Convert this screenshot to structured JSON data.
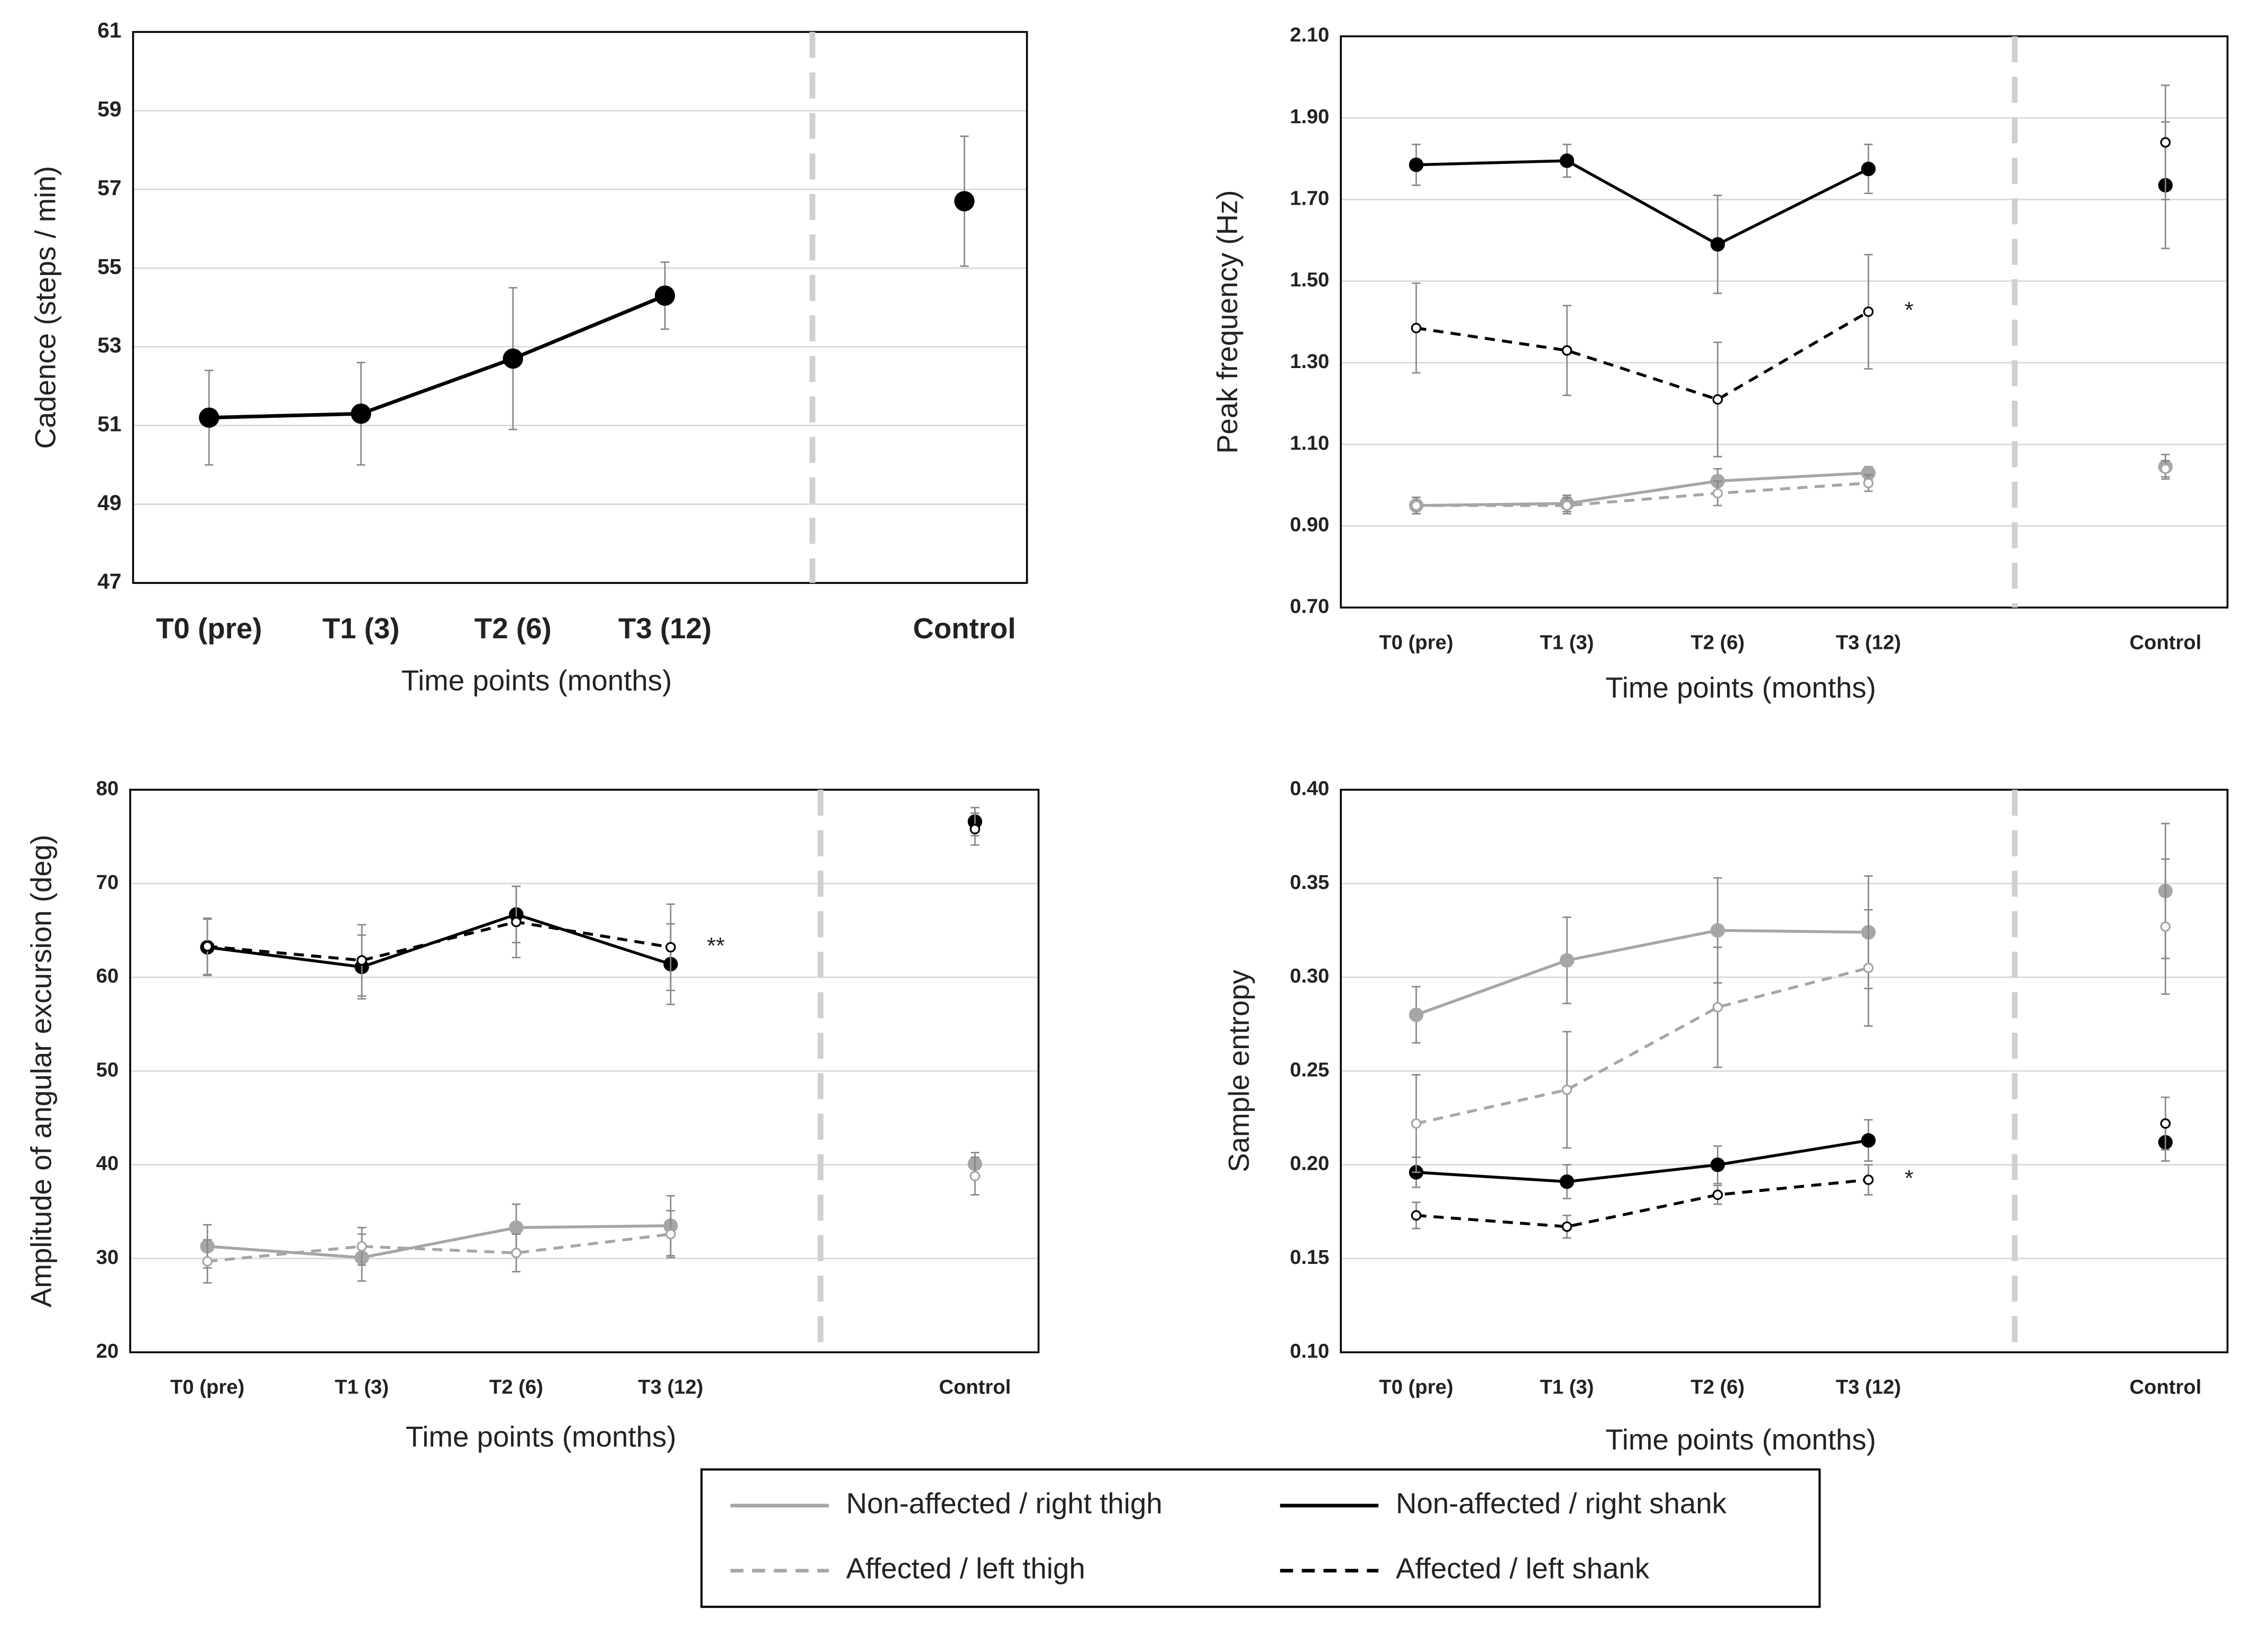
{
  "chart_data": [
    {
      "type": "line",
      "y_label": "Cadence (steps / min)",
      "x_label": "Time points (months)",
      "categories": [
        "T0 (pre)",
        "T1 (3)",
        "T2 (6)",
        "T3 (12)",
        "Control"
      ],
      "ylim": [
        47,
        61
      ],
      "yticks": [
        47,
        49,
        51,
        53,
        55,
        57,
        59,
        61
      ],
      "grid": true,
      "series": [
        {
          "color": "#000000",
          "dashed": false,
          "filled": true,
          "values": [
            51.2,
            51.3,
            52.7,
            54.3,
            56.7
          ],
          "errors": [
            1.2,
            1.3,
            1.8,
            0.85,
            1.65
          ]
        }
      ]
    },
    {
      "type": "line",
      "y_label": "Peak frequency (Hz)",
      "x_label": "Time points (months)",
      "categories": [
        "T0 (pre)",
        "T1 (3)",
        "T2 (6)",
        "T3 (12)",
        "Control"
      ],
      "ylim": [
        0.7,
        2.1
      ],
      "yticks": [
        {
          "value": 0.7,
          "label": "0.70"
        },
        {
          "value": 0.9,
          "label": "0.90"
        },
        {
          "value": 1.1,
          "label": "1.10"
        },
        {
          "value": 1.3,
          "label": "1.30"
        },
        {
          "value": 1.5,
          "label": "1.50"
        },
        {
          "value": 1.7,
          "label": "1.70"
        },
        {
          "value": 1.9,
          "label": "1.90"
        },
        {
          "value": 2.1,
          "label": "2.10"
        }
      ],
      "grid": true,
      "annotation": "*",
      "series": [
        {
          "name": "Non-affected  / right thigh",
          "color": "#a6a6a6",
          "dashed": false,
          "filled": true,
          "values": [
            0.95,
            0.955,
            1.01,
            1.03,
            1.045
          ],
          "errors": [
            0.02,
            0.02,
            0.03,
            0.015,
            0.03
          ]
        },
        {
          "name": "Non-affected / right shank",
          "color": "#000000",
          "dashed": false,
          "filled": true,
          "values": [
            1.785,
            1.795,
            1.59,
            1.775,
            1.735
          ],
          "errors": [
            0.05,
            0.04,
            0.12,
            0.06,
            0.155
          ]
        },
        {
          "name": "Affected / left thigh",
          "color": "#a6a6a6",
          "dashed": true,
          "filled": false,
          "values": [
            0.95,
            0.95,
            0.98,
            1.005,
            1.04
          ],
          "errors": [
            0.02,
            0.02,
            0.03,
            0.02,
            0.02
          ]
        },
        {
          "name": "Affected / left shank",
          "color": "#000000",
          "dashed": true,
          "filled": false,
          "values": [
            1.385,
            1.33,
            1.21,
            1.425,
            1.84
          ],
          "errors": [
            0.11,
            0.11,
            0.14,
            0.14,
            0.14
          ]
        }
      ]
    },
    {
      "type": "line",
      "y_label": "Amplitude of angular excursion (deg)",
      "x_label": "Time points (months)",
      "categories": [
        "T0 (pre)",
        "T1 (3)",
        "T2 (6)",
        "T3 (12)",
        "Control"
      ],
      "ylim": [
        20,
        80
      ],
      "yticks": [
        20,
        30,
        40,
        50,
        60,
        70,
        80
      ],
      "grid": true,
      "annotation": "**",
      "series": [
        {
          "name": "Non-affected  / right thigh",
          "color": "#a6a6a6",
          "dashed": false,
          "filled": true,
          "values": [
            31.3,
            30.1,
            33.3,
            33.5,
            40.1
          ],
          "errors": [
            2.3,
            2.5,
            2.5,
            3.2,
            1.2
          ]
        },
        {
          "name": "Non-affected / right shank",
          "color": "#000000",
          "dashed": false,
          "filled": true,
          "values": [
            63.2,
            61.1,
            66.7,
            61.4,
            76.6
          ],
          "errors": [
            3,
            3.4,
            3,
            4.3,
            1.5
          ]
        },
        {
          "name": "Affected / left thigh",
          "color": "#a6a6a6",
          "dashed": true,
          "filled": false,
          "values": [
            29.7,
            31.3,
            30.6,
            32.6,
            38.8
          ],
          "errors": [
            2.3,
            2,
            2,
            2.5,
            2
          ]
        },
        {
          "name": "Affected / left shank",
          "color": "#000000",
          "dashed": true,
          "filled": false,
          "values": [
            63.3,
            61.8,
            65.9,
            63.2,
            75.8
          ],
          "errors": [
            3,
            3.8,
            3.8,
            4.6,
            1.7
          ]
        }
      ]
    },
    {
      "type": "line",
      "y_label": "Sample entropy",
      "x_label": "Time points (months)",
      "categories": [
        "T0 (pre)",
        "T1 (3)",
        "T2 (6)",
        "T3 (12)",
        "Control"
      ],
      "ylim": [
        0.1,
        0.4
      ],
      "yticks": [
        {
          "value": 0.1,
          "label": "0.10"
        },
        {
          "value": 0.15,
          "label": "0.15"
        },
        {
          "value": 0.2,
          "label": "0.20"
        },
        {
          "value": 0.25,
          "label": "0.25"
        },
        {
          "value": 0.3,
          "label": "0.30"
        },
        {
          "value": 0.35,
          "label": "0.35"
        },
        {
          "value": 0.4,
          "label": "0.40"
        }
      ],
      "grid": true,
      "annotation": "*",
      "series": [
        {
          "name": "Non-affected  / right thigh",
          "color": "#a6a6a6",
          "dashed": false,
          "filled": true,
          "values": [
            0.28,
            0.309,
            0.325,
            0.324,
            0.346
          ],
          "errors": [
            0.015,
            0.023,
            0.028,
            0.03,
            0.036
          ]
        },
        {
          "name": "Non-affected / right shank",
          "color": "#000000",
          "dashed": false,
          "filled": true,
          "values": [
            0.196,
            0.191,
            0.2,
            0.213,
            0.212
          ],
          "errors": [
            0.008,
            0.009,
            0.01,
            0.011,
            0.01
          ]
        },
        {
          "name": "Affected / left thigh",
          "color": "#a6a6a6",
          "dashed": true,
          "filled": false,
          "values": [
            0.222,
            0.24,
            0.284,
            0.305,
            0.327
          ],
          "errors": [
            0.026,
            0.031,
            0.032,
            0.031,
            0.036
          ]
        },
        {
          "name": "Affected / left shank",
          "color": "#000000",
          "dashed": true,
          "filled": false,
          "values": [
            0.173,
            0.167,
            0.184,
            0.192,
            0.222
          ],
          "errors": [
            0.007,
            0.006,
            0.005,
            0.008,
            0.014
          ]
        }
      ]
    }
  ]
}
